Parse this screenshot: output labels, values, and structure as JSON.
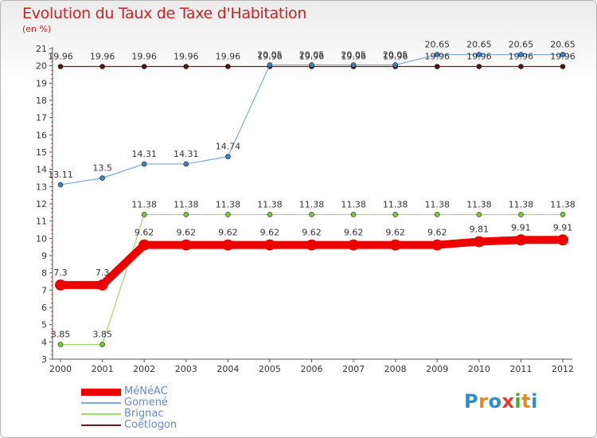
{
  "header": {
    "title": "Evolution du Taux de Taxe d'Habitation",
    "subtitle": "(en %)"
  },
  "logo": {
    "text": "Proxiti",
    "colors": [
      "#2a8fd0",
      "#e88a1a",
      "#2a8fd0",
      "#e63a2a",
      "#4aa83a",
      "#e88a1a",
      "#2a8fd0"
    ]
  },
  "chart_data": {
    "type": "line",
    "title": "Evolution du Taux de Taxe d'Habitation",
    "subtitle": "(en %)",
    "xlabel": "",
    "ylabel": "",
    "x": [
      "2000",
      "2001",
      "2002",
      "2003",
      "2004",
      "2005",
      "2006",
      "2007",
      "2008",
      "2009",
      "2010",
      "2011",
      "2012"
    ],
    "ylim": [
      3,
      21
    ],
    "yticks": [
      3,
      4,
      5,
      6,
      7,
      8,
      9,
      10,
      11,
      12,
      13,
      14,
      15,
      16,
      17,
      18,
      19,
      20,
      21
    ],
    "grid": false,
    "legend_position": "bottom-left",
    "series": [
      {
        "name": "MéNéAC",
        "color": "#ee0000",
        "width": 10,
        "values": [
          7.3,
          7.3,
          9.62,
          9.62,
          9.62,
          9.62,
          9.62,
          9.62,
          9.62,
          9.62,
          9.81,
          9.91,
          9.91
        ],
        "labels": [
          "7.3",
          "7.3",
          "9.62",
          "9.62",
          "9.62",
          "9.62",
          "9.62",
          "9.62",
          "9.62",
          "9.62",
          "9.81",
          "9.91",
          "9.91"
        ]
      },
      {
        "name": "Gomené",
        "color": "#7aaad8",
        "marker": "#3a7fc8",
        "width": 1.2,
        "values": [
          13.11,
          13.5,
          14.31,
          14.31,
          14.74,
          20.05,
          20.05,
          20.05,
          20.05,
          20.65,
          20.65,
          20.65,
          20.65
        ],
        "labels": [
          "13.11",
          "13.5",
          "14.31",
          "14.31",
          "14.74",
          "20.05",
          "20.05",
          "20.05",
          "20.05",
          "20.65",
          "20.65",
          "20.65",
          "20.65"
        ]
      },
      {
        "name": "Brignac",
        "color": "#99dd66",
        "marker": "#77cc33",
        "width": 1.2,
        "values": [
          3.85,
          3.85,
          11.38,
          11.38,
          11.38,
          11.38,
          11.38,
          11.38,
          11.38,
          11.38,
          11.38,
          11.38,
          11.38
        ],
        "labels": [
          "3.85",
          "3.85",
          "11.38",
          "11.38",
          "11.38",
          "11.38",
          "11.38",
          "11.38",
          "11.38",
          "11.38",
          "11.38",
          "11.38",
          "11.38"
        ]
      },
      {
        "name": "Coëtlogon",
        "color": "#771a1a",
        "marker": "#5a1010",
        "width": 1.2,
        "values": [
          19.96,
          19.96,
          19.96,
          19.96,
          19.96,
          19.96,
          19.96,
          19.96,
          19.96,
          19.96,
          19.96,
          19.96,
          19.96
        ],
        "labels": [
          "19.96",
          "19.96",
          "19.96",
          "19.96",
          "19.96",
          "19.96",
          "19.96",
          "19.96",
          "19.96",
          "19.96",
          "19.96",
          "19.96",
          "19.96"
        ]
      }
    ]
  }
}
